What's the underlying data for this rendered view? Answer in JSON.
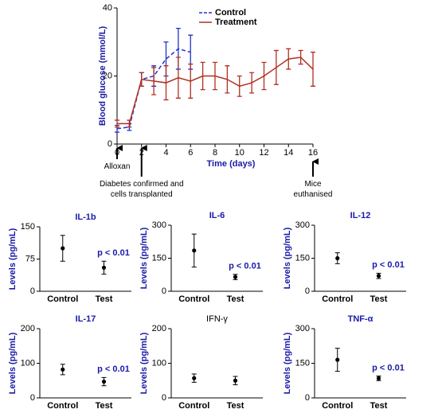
{
  "chart_data": [
    {
      "type": "line",
      "ylabel": "Blood glucose (mmol/L)",
      "xlabel": "Time (days)",
      "x": [
        0,
        1,
        2,
        3,
        4,
        5,
        6,
        7,
        8,
        9,
        10,
        11,
        12,
        13,
        14,
        15,
        16
      ],
      "series": [
        {
          "name": "Control",
          "color": "#2233cc",
          "dashed": true,
          "values": [
            4.5,
            5,
            19,
            20,
            25,
            28,
            27,
            null,
            null,
            null,
            null,
            null,
            null,
            null,
            null,
            null,
            null
          ],
          "errors": [
            1,
            1,
            2,
            3,
            5,
            6,
            5,
            null,
            null,
            null,
            null,
            null,
            null,
            null,
            null,
            null,
            null
          ]
        },
        {
          "name": "Treatment",
          "color": "#b03020",
          "dashed": false,
          "values": [
            6,
            6,
            19,
            18.5,
            18,
            19.5,
            18.5,
            20,
            20,
            19,
            17,
            18,
            20,
            22.5,
            25,
            25.5,
            22
          ],
          "errors": [
            1,
            1,
            2,
            4,
            5,
            6,
            5,
            4,
            4,
            4,
            3,
            3,
            4,
            5,
            3,
            2,
            5
          ]
        }
      ],
      "xlim": [
        0,
        16
      ],
      "xticks": [
        0,
        2,
        4,
        6,
        8,
        10,
        12,
        14,
        16
      ],
      "ylim": [
        0,
        40
      ],
      "yticks": [
        0,
        20,
        40
      ],
      "legend": "top",
      "annotations": [
        {
          "text": "Alloxan",
          "x": 0
        },
        {
          "text": "Diabetes confirmed and cells transplanted",
          "x": 2
        },
        {
          "text": "Mice euthanised",
          "x": 16
        }
      ]
    },
    {
      "type": "errorbar",
      "title": "IL-1b",
      "ylabel": "Levels (pg/mL)",
      "categories": [
        "Control",
        "Test"
      ],
      "values": [
        100,
        55
      ],
      "errors": [
        30,
        15
      ],
      "ylim": [
        0,
        150
      ],
      "yticks": [
        0,
        75,
        150
      ],
      "annotation": "p < 0.01"
    },
    {
      "type": "errorbar",
      "title": "IL-6",
      "ylabel": "Levels (pg/mL)",
      "categories": [
        "Control",
        "Test"
      ],
      "values": [
        185,
        65
      ],
      "errors": [
        75,
        12
      ],
      "ylim": [
        0,
        300
      ],
      "yticks": [
        0,
        150,
        300
      ],
      "annotation": "p < 0.01"
    },
    {
      "type": "errorbar",
      "title": "IL-12",
      "ylabel": "Levels (pg/mL)",
      "categories": [
        "Control",
        "Test"
      ],
      "values": [
        150,
        70
      ],
      "errors": [
        25,
        12
      ],
      "ylim": [
        0,
        300
      ],
      "yticks": [
        0,
        150,
        300
      ],
      "annotation": "p < 0.01"
    },
    {
      "type": "errorbar",
      "title": "IL-17",
      "ylabel": "Levels (pg/mL)",
      "categories": [
        "Control",
        "Test"
      ],
      "values": [
        82,
        47
      ],
      "errors": [
        15,
        12
      ],
      "ylim": [
        0,
        200
      ],
      "yticks": [
        0,
        100,
        200
      ],
      "annotation": "p < 0.01"
    },
    {
      "type": "errorbar",
      "title": "IFN-γ",
      "ylabel": "Levels (pg/mL)",
      "categories": [
        "Control",
        "Test"
      ],
      "values": [
        57,
        50
      ],
      "errors": [
        12,
        12
      ],
      "ylim": [
        0,
        200
      ],
      "yticks": [
        0,
        100,
        200
      ]
    },
    {
      "type": "errorbar",
      "title": "TNF-α",
      "ylabel": "Levels (pg/mL)",
      "categories": [
        "Control",
        "Test"
      ],
      "values": [
        165,
        85
      ],
      "errors": [
        50,
        10
      ],
      "ylim": [
        0,
        300
      ],
      "yticks": [
        0,
        150,
        300
      ],
      "annotation": "p < 0.01"
    }
  ]
}
